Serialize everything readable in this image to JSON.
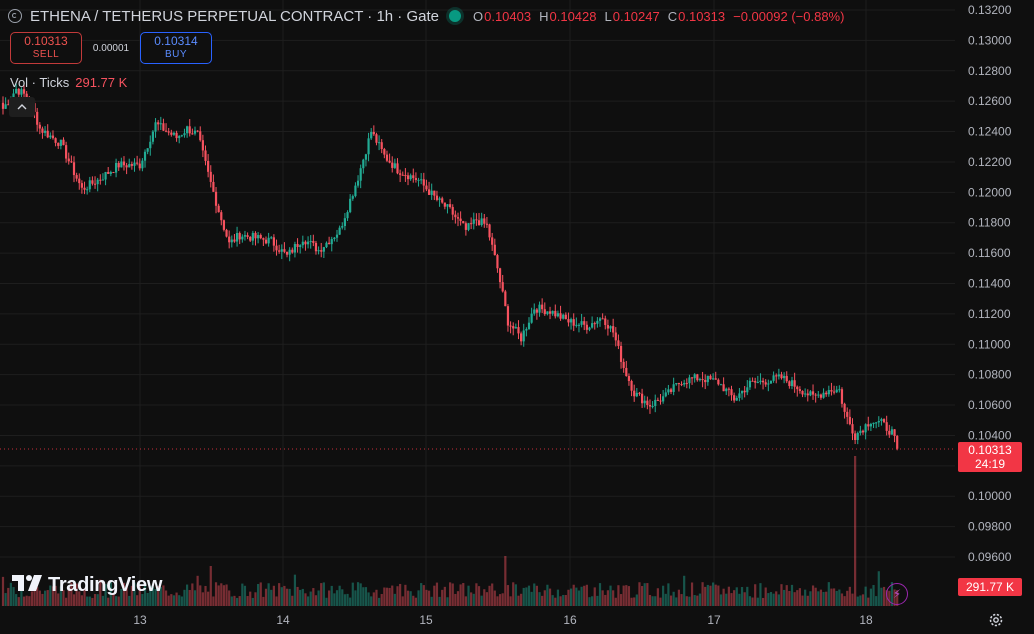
{
  "header": {
    "title": "ETHENA / TETHERUS PERPETUAL CONTRACT · 1h · Gate",
    "open_key": "O",
    "open": "0.10403",
    "high_key": "H",
    "high": "0.10428",
    "low_key": "L",
    "low": "0.10247",
    "close_key": "C",
    "close": "0.10313",
    "change": "−0.00092 (−0.88%)"
  },
  "trade": {
    "sell_price": "0.10313",
    "sell_label": "SELL",
    "spread": "0.00001",
    "buy_price": "0.10314",
    "buy_label": "BUY"
  },
  "volume_legend": {
    "name": "Vol · Ticks",
    "value": "291.77 K"
  },
  "brand": {
    "name": "TradingView"
  },
  "price_label": {
    "price": "0.10313",
    "countdown": "24:19"
  },
  "volume_label": "291.77 K",
  "colors": {
    "up": "#22ab94",
    "down": "#f7525f",
    "background": "#0f0f0f",
    "grid": "#1e1e1e",
    "last_price_line": "#f23645"
  },
  "icons": {
    "settings": "gear-icon",
    "symbol": "symbol-logo-icon",
    "collapse": "chevron-up-icon",
    "alert": "lightning-icon"
  },
  "chart_data": {
    "type": "candlestick",
    "y_axis_ticks": [
      "0.13200",
      "0.13000",
      "0.12800",
      "0.12600",
      "0.12400",
      "0.12200",
      "0.12000",
      "0.11800",
      "0.11600",
      "0.11400",
      "0.11200",
      "0.11000",
      "0.10800",
      "0.10600",
      "0.10400",
      "0.10200",
      "0.10000",
      "0.09800",
      "0.09600"
    ],
    "x_axis_ticks": [
      "13",
      "14",
      "15",
      "16",
      "17",
      "18"
    ],
    "ylim": [
      0.0946,
      0.1327
    ],
    "last_price": 0.10313,
    "close_path": [
      [
        0,
        0.1255
      ],
      [
        5,
        0.1268
      ],
      [
        10,
        0.1262
      ],
      [
        14,
        0.1242
      ],
      [
        22,
        0.1232
      ],
      [
        30,
        0.1202
      ],
      [
        36,
        0.1208
      ],
      [
        44,
        0.1218
      ],
      [
        52,
        0.1218
      ],
      [
        58,
        0.1245
      ],
      [
        66,
        0.1236
      ],
      [
        70,
        0.1242
      ],
      [
        74,
        0.1238
      ],
      [
        78,
        0.1212
      ],
      [
        82,
        0.1188
      ],
      [
        86,
        0.1166
      ],
      [
        90,
        0.1172
      ],
      [
        96,
        0.117
      ],
      [
        102,
        0.1168
      ],
      [
        108,
        0.1158
      ],
      [
        114,
        0.117
      ],
      [
        120,
        0.1162
      ],
      [
        128,
        0.1175
      ],
      [
        135,
        0.121
      ],
      [
        140,
        0.124
      ],
      [
        145,
        0.1224
      ],
      [
        150,
        0.1215
      ],
      [
        158,
        0.1208
      ],
      [
        165,
        0.1195
      ],
      [
        170,
        0.1188
      ],
      [
        176,
        0.1175
      ],
      [
        180,
        0.1182
      ],
      [
        184,
        0.1178
      ],
      [
        188,
        0.115
      ],
      [
        192,
        0.1115
      ],
      [
        197,
        0.1104
      ],
      [
        202,
        0.1124
      ],
      [
        208,
        0.1122
      ],
      [
        215,
        0.1115
      ],
      [
        222,
        0.1112
      ],
      [
        228,
        0.1118
      ],
      [
        232,
        0.1108
      ],
      [
        236,
        0.1085
      ],
      [
        240,
        0.1068
      ],
      [
        246,
        0.106
      ],
      [
        252,
        0.1066
      ],
      [
        258,
        0.1076
      ],
      [
        265,
        0.1078
      ],
      [
        272,
        0.1075
      ],
      [
        278,
        0.1064
      ],
      [
        284,
        0.1074
      ],
      [
        290,
        0.1076
      ],
      [
        296,
        0.1078
      ],
      [
        302,
        0.1072
      ],
      [
        308,
        0.1065
      ],
      [
        314,
        0.107
      ],
      [
        318,
        0.107
      ],
      [
        320,
        0.1055
      ],
      [
        324,
        0.104
      ],
      [
        330,
        0.105
      ],
      [
        334,
        0.1048
      ],
      [
        338,
        0.1042
      ],
      [
        340,
        0.10313
      ]
    ],
    "volume_series": "Vol · Ticks",
    "volume_last": 291.77
  }
}
